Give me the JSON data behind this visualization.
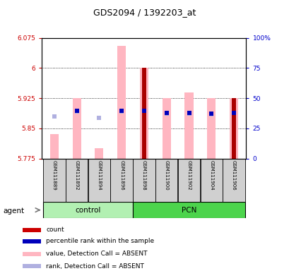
{
  "title": "GDS2094 / 1392203_at",
  "samples": [
    "GSM111889",
    "GSM111892",
    "GSM111894",
    "GSM111896",
    "GSM111898",
    "GSM111900",
    "GSM111902",
    "GSM111904",
    "GSM111906"
  ],
  "groups": [
    {
      "name": "control",
      "indices": [
        0,
        1,
        2,
        3
      ],
      "color": "#b2f0b2"
    },
    {
      "name": "PCN",
      "indices": [
        4,
        5,
        6,
        7,
        8
      ],
      "color": "#4cd44c"
    }
  ],
  "ylim_left": [
    5.775,
    6.075
  ],
  "ylim_right": [
    0,
    100
  ],
  "yticks_left": [
    5.775,
    5.85,
    5.925,
    6.0,
    6.075
  ],
  "ytick_labels_left": [
    "5.775",
    "5.85",
    "5.925",
    "6",
    "6.075"
  ],
  "yticks_right": [
    0,
    25,
    50,
    75,
    100
  ],
  "ytick_labels_right": [
    "0",
    "25",
    "50",
    "75",
    "100%"
  ],
  "pink_bars": {
    "bottom": [
      5.775,
      5.775,
      5.775,
      5.775,
      5.775,
      5.775,
      5.775,
      5.775,
      5.775
    ],
    "top": [
      5.835,
      5.925,
      5.8,
      6.055,
      6.0,
      5.925,
      5.94,
      5.925,
      5.925
    ]
  },
  "red_bars_present": [
    false,
    false,
    false,
    false,
    true,
    false,
    false,
    false,
    true
  ],
  "red_bars_top": [
    5.835,
    5.925,
    5.8,
    6.055,
    6.0,
    5.925,
    5.94,
    5.925,
    5.925
  ],
  "blue_sq_present": [
    false,
    true,
    false,
    true,
    true,
    true,
    true,
    true,
    true
  ],
  "blue_sq_values": [
    5.88,
    5.893,
    5.877,
    5.893,
    5.893,
    5.889,
    5.888,
    5.887,
    5.888
  ],
  "light_blue_sq_present": [
    true,
    true,
    true,
    true,
    false,
    true,
    true,
    true,
    false
  ],
  "light_blue_sq_values": [
    5.88,
    5.892,
    5.877,
    5.892,
    5.893,
    5.887,
    5.886,
    5.885,
    5.888
  ],
  "pink_bar_width": 0.38,
  "red_bar_width": 0.18,
  "pink_color": "#ffb6c1",
  "dark_red_color": "#aa0000",
  "blue_color": "#0000bb",
  "light_blue_color": "#b0b0e0",
  "left_tick_color": "#cc0000",
  "right_tick_color": "#0000cc",
  "legend_items": [
    {
      "color": "#cc0000",
      "label": "count"
    },
    {
      "color": "#0000bb",
      "label": "percentile rank within the sample"
    },
    {
      "color": "#ffb6c1",
      "label": "value, Detection Call = ABSENT"
    },
    {
      "color": "#b0b0e0",
      "label": "rank, Detection Call = ABSENT"
    }
  ]
}
